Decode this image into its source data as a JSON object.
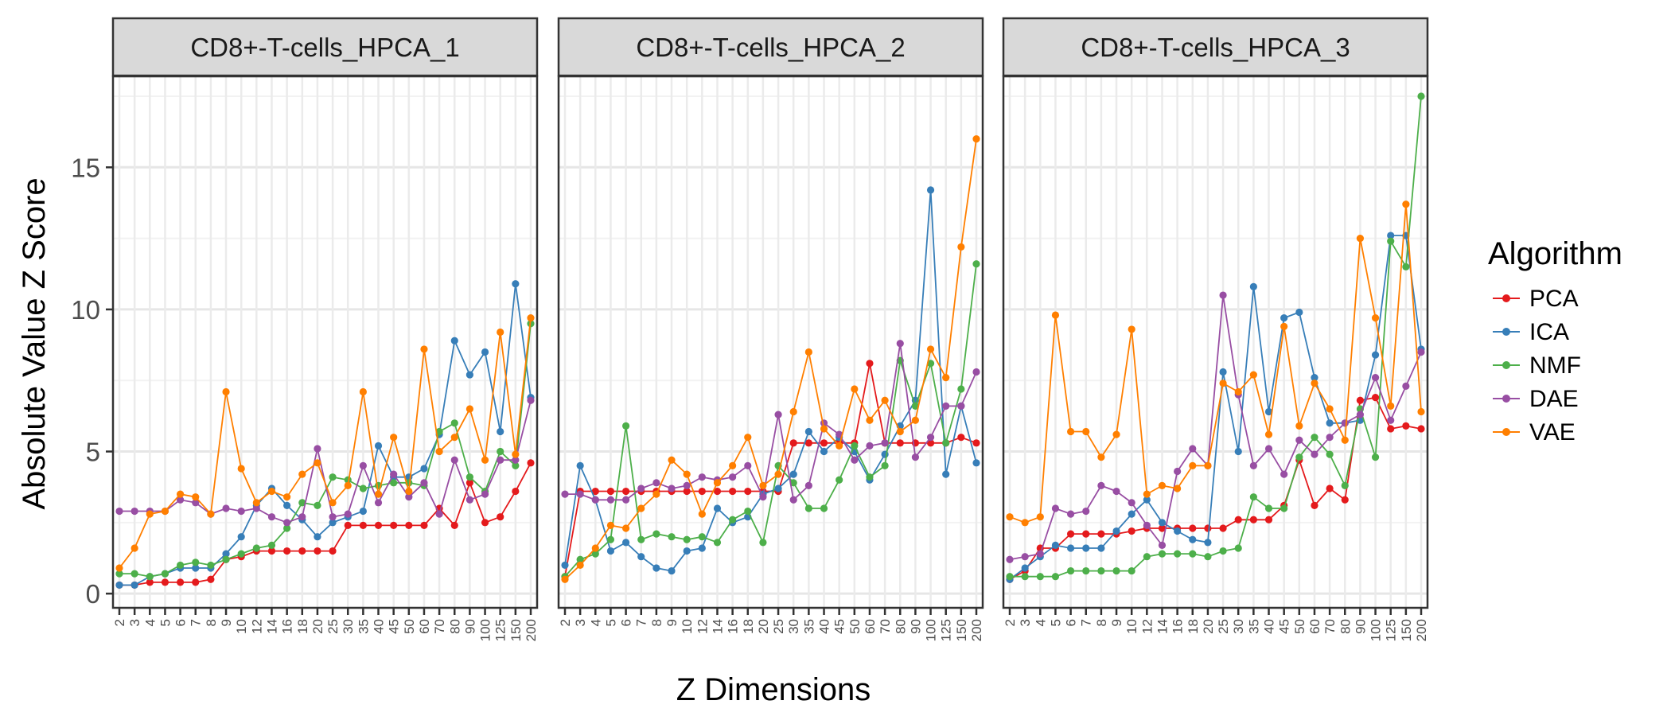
{
  "chart_data": {
    "type": "line",
    "ylabel": "Absolute Value Z Score",
    "xlabel": "Z Dimensions",
    "x_ticks": [
      "2",
      "3",
      "4",
      "5",
      "6",
      "7",
      "8",
      "9",
      "10",
      "12",
      "14",
      "16",
      "18",
      "20",
      "25",
      "30",
      "35",
      "40",
      "45",
      "50",
      "60",
      "70",
      "80",
      "90",
      "100",
      "125",
      "150",
      "200"
    ],
    "y_ticks": [
      0,
      5,
      10,
      15
    ],
    "ylim": [
      -0.5,
      18.2
    ],
    "grid": true,
    "legend": {
      "title": "Algorithm",
      "position": "right",
      "entries": [
        "PCA",
        "ICA",
        "NMF",
        "DAE",
        "VAE"
      ]
    },
    "colors": {
      "PCA": "#e41a1c",
      "ICA": "#377eb8",
      "NMF": "#4daf4a",
      "DAE": "#984ea3",
      "VAE": "#ff7f00"
    },
    "panels": [
      {
        "title": "CD8+-T-cells_HPCA_1",
        "series": [
          {
            "name": "PCA",
            "values": [
              0.3,
              0.3,
              0.4,
              0.4,
              0.4,
              0.4,
              0.5,
              1.2,
              1.3,
              1.5,
              1.5,
              1.5,
              1.5,
              1.5,
              1.5,
              2.4,
              2.4,
              2.4,
              2.4,
              2.4,
              2.4,
              3.0,
              2.4,
              3.9,
              2.5,
              2.7,
              3.6,
              4.6
            ]
          },
          {
            "name": "ICA",
            "values": [
              0.3,
              0.3,
              0.6,
              0.7,
              0.9,
              0.9,
              0.9,
              1.4,
              2.0,
              3.1,
              3.7,
              3.1,
              2.6,
              2.0,
              2.5,
              2.7,
              2.9,
              5.2,
              4.1,
              4.1,
              4.4,
              5.6,
              8.9,
              7.7,
              8.5,
              5.7,
              10.9,
              6.9
            ]
          },
          {
            "name": "NMF",
            "values": [
              0.7,
              0.7,
              0.6,
              0.7,
              1.0,
              1.1,
              1.0,
              1.2,
              1.4,
              1.6,
              1.7,
              2.3,
              3.2,
              3.1,
              4.1,
              4.0,
              3.7,
              3.8,
              3.9,
              3.9,
              3.8,
              5.7,
              6.0,
              4.1,
              3.6,
              5.0,
              4.5,
              9.5
            ]
          },
          {
            "name": "DAE",
            "values": [
              2.9,
              2.9,
              2.9,
              2.9,
              3.3,
              3.2,
              2.8,
              3.0,
              2.9,
              3.0,
              2.7,
              2.5,
              2.7,
              5.1,
              2.7,
              2.8,
              4.5,
              3.2,
              4.2,
              3.4,
              3.9,
              2.8,
              4.7,
              3.3,
              3.5,
              4.7,
              4.7,
              6.8
            ]
          },
          {
            "name": "VAE",
            "values": [
              0.9,
              1.6,
              2.8,
              2.9,
              3.5,
              3.4,
              2.8,
              7.1,
              4.4,
              3.2,
              3.6,
              3.4,
              4.2,
              4.6,
              3.2,
              3.8,
              7.1,
              3.5,
              5.5,
              3.6,
              8.6,
              5.0,
              5.5,
              6.5,
              4.7,
              9.2,
              4.9,
              9.7
            ]
          }
        ]
      },
      {
        "title": "CD8+-T-cells_HPCA_2",
        "series": [
          {
            "name": "PCA",
            "values": [
              0.6,
              3.6,
              3.6,
              3.6,
              3.6,
              3.6,
              3.6,
              3.6,
              3.6,
              3.6,
              3.6,
              3.6,
              3.6,
              3.6,
              3.6,
              5.3,
              5.3,
              5.3,
              5.3,
              5.3,
              8.1,
              5.3,
              5.3,
              5.3,
              5.3,
              5.3,
              5.5,
              5.3
            ]
          },
          {
            "name": "ICA",
            "values": [
              1.0,
              4.5,
              3.3,
              1.5,
              1.8,
              1.3,
              0.9,
              0.8,
              1.5,
              1.6,
              3.0,
              2.5,
              2.7,
              3.5,
              3.7,
              4.2,
              5.7,
              5.0,
              5.5,
              5.0,
              4.0,
              4.9,
              5.9,
              6.8,
              14.2,
              4.2,
              6.6,
              4.6
            ]
          },
          {
            "name": "NMF",
            "values": [
              0.6,
              1.2,
              1.4,
              1.9,
              5.9,
              1.9,
              2.1,
              2.0,
              1.9,
              2.0,
              1.8,
              2.6,
              2.9,
              1.8,
              4.5,
              3.9,
              3.0,
              3.0,
              4.0,
              5.2,
              4.1,
              4.5,
              8.2,
              6.6,
              8.1,
              5.3,
              7.2,
              11.6
            ]
          },
          {
            "name": "DAE",
            "values": [
              3.5,
              3.5,
              3.3,
              3.3,
              3.3,
              3.7,
              3.9,
              3.7,
              3.8,
              4.1,
              4.0,
              4.1,
              4.5,
              3.4,
              6.3,
              3.3,
              3.8,
              6.0,
              5.6,
              4.7,
              5.2,
              5.3,
              8.8,
              4.8,
              5.5,
              6.6,
              6.6,
              7.8
            ]
          },
          {
            "name": "VAE",
            "values": [
              0.5,
              1.0,
              1.6,
              2.4,
              2.3,
              3.0,
              3.5,
              4.7,
              4.2,
              2.8,
              3.9,
              4.5,
              5.5,
              3.8,
              4.2,
              6.4,
              8.5,
              5.8,
              5.2,
              7.2,
              6.1,
              6.8,
              5.7,
              6.1,
              8.6,
              7.6,
              12.2,
              16.0
            ]
          }
        ]
      },
      {
        "title": "CD8+-T-cells_HPCA_3",
        "series": [
          {
            "name": "PCA",
            "values": [
              0.5,
              0.8,
              1.6,
              1.6,
              2.1,
              2.1,
              2.1,
              2.1,
              2.2,
              2.3,
              2.3,
              2.3,
              2.3,
              2.3,
              2.3,
              2.6,
              2.6,
              2.6,
              3.1,
              4.7,
              3.1,
              3.7,
              3.3,
              6.8,
              6.9,
              5.8,
              5.9,
              5.8
            ]
          },
          {
            "name": "ICA",
            "values": [
              0.5,
              0.9,
              1.3,
              1.7,
              1.6,
              1.6,
              1.6,
              2.2,
              2.8,
              3.3,
              2.5,
              2.2,
              1.9,
              1.8,
              7.8,
              5.0,
              10.8,
              6.4,
              9.7,
              9.9,
              7.6,
              6.0,
              6.0,
              6.1,
              8.4,
              12.6,
              12.6,
              8.6
            ]
          },
          {
            "name": "NMF",
            "values": [
              0.6,
              0.6,
              0.6,
              0.6,
              0.8,
              0.8,
              0.8,
              0.8,
              0.8,
              1.3,
              1.4,
              1.4,
              1.4,
              1.3,
              1.5,
              1.6,
              3.4,
              3.0,
              3.0,
              4.8,
              5.5,
              4.9,
              3.8,
              6.5,
              4.8,
              12.4,
              11.5,
              17.5
            ]
          },
          {
            "name": "DAE",
            "values": [
              1.2,
              1.3,
              1.4,
              3.0,
              2.8,
              2.9,
              3.8,
              3.6,
              3.2,
              2.4,
              1.7,
              4.3,
              5.1,
              4.5,
              10.5,
              7.0,
              4.5,
              5.1,
              4.2,
              5.4,
              4.9,
              5.5,
              6.0,
              6.3,
              7.6,
              6.1,
              7.3,
              8.5
            ]
          },
          {
            "name": "VAE",
            "values": [
              2.7,
              2.5,
              2.7,
              9.8,
              5.7,
              5.7,
              4.8,
              5.6,
              9.3,
              3.5,
              3.8,
              3.7,
              4.5,
              4.5,
              7.4,
              7.1,
              7.7,
              5.6,
              9.4,
              5.9,
              7.4,
              6.5,
              5.4,
              12.5,
              9.7,
              6.6,
              13.7,
              6.4
            ]
          }
        ]
      }
    ]
  }
}
